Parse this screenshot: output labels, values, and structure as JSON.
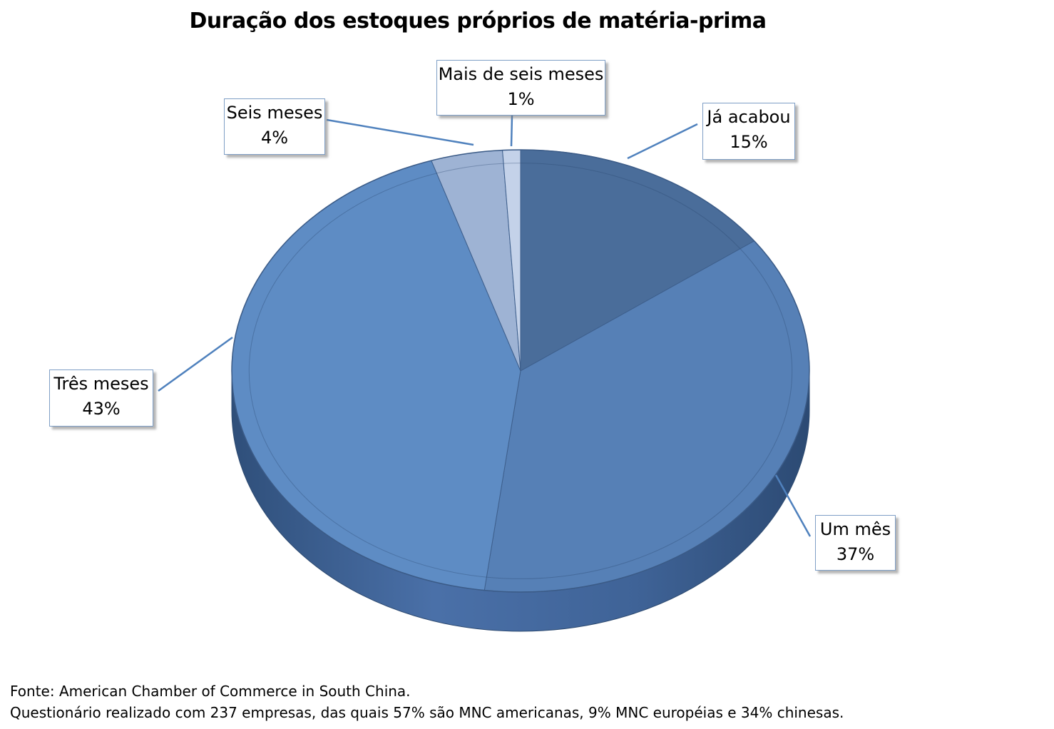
{
  "chart_data": {
    "type": "pie",
    "title": "Duração dos estoques próprios de matéria-prima",
    "categories": [
      "Já acabou",
      "Um mês",
      "Três meses",
      "Seis meses",
      "Mais de seis meses"
    ],
    "values": [
      15,
      37,
      43,
      4,
      1
    ],
    "value_labels": [
      "15%",
      "37%",
      "43%",
      "4%",
      "1%"
    ],
    "colors": [
      "#4a6d9a",
      "#5680b6",
      "#5e8cc4",
      "#9eb3d4",
      "#c4d2e9"
    ],
    "legend": "none",
    "style": "3d-exploded"
  },
  "footnotes": {
    "source": "Fonte: American Chamber of Commerce in South China.",
    "note": "Questionário realizado com 237 empresas, das quais 57% são MNC americanas, 9% MNC européias e 34% chinesas."
  }
}
